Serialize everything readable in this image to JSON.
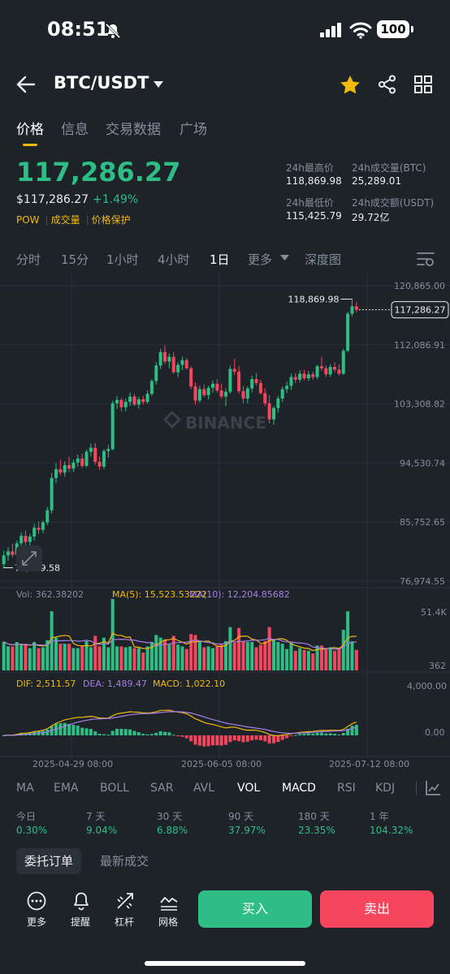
{
  "status": {
    "time": "08:51",
    "battery": "100"
  },
  "header": {
    "pair": "BTC/USDT"
  },
  "tabs": [
    "价格",
    "信息",
    "交易数据",
    "广场"
  ],
  "price": {
    "last": "117,286.27",
    "fiat": "$117,286.27",
    "change": "+1.49%",
    "tags": [
      "POW",
      "成交量",
      "价格保护"
    ]
  },
  "stats": {
    "high_label": "24h最高价",
    "high": "118,869.98",
    "vol_btc_label": "24h成交量(BTC)",
    "vol_btc": "25,289.01",
    "low_label": "24h最低价",
    "low": "115,425.79",
    "vol_usdt_label": "24h成交额(USDT)",
    "vol_usdt": "29.72亿"
  },
  "intervals": [
    "分时",
    "15分",
    "1小时",
    "4小时",
    "1日",
    "更多",
    "深度图"
  ],
  "chart_data": {
    "type": "candlestick",
    "price_axis": [
      "120,865.00",
      "112,086.91",
      "103,308.82",
      "94,530.74",
      "85,752.65",
      "76,974.55"
    ],
    "ylim": [
      76974.55,
      120865.0
    ],
    "high_marker": "118,869.98",
    "low_marker": "78,969.58",
    "last_price_tag": "117,286.27",
    "watermark": "BINANCE",
    "candles": [
      [
        79500,
        81500,
        78969.58,
        80800
      ],
      [
        80800,
        82000,
        80000,
        81400
      ],
      [
        81400,
        82500,
        80500,
        80900
      ],
      [
        80900,
        83000,
        80500,
        82600
      ],
      [
        82600,
        84200,
        82000,
        83700
      ],
      [
        83700,
        84500,
        82300,
        82800
      ],
      [
        82800,
        84000,
        82200,
        83600
      ],
      [
        83600,
        85500,
        83000,
        84900
      ],
      [
        84900,
        85800,
        84000,
        84600
      ],
      [
        84600,
        86000,
        84100,
        85700
      ],
      [
        85700,
        88000,
        85300,
        87500
      ],
      [
        87500,
        93000,
        87000,
        92300
      ],
      [
        92300,
        94500,
        91500,
        93600
      ],
      [
        93600,
        95000,
        92700,
        93100
      ],
      [
        93100,
        94800,
        92500,
        94200
      ],
      [
        94200,
        95500,
        93200,
        93700
      ],
      [
        93700,
        95000,
        93200,
        94600
      ],
      [
        94600,
        95800,
        94000,
        95200
      ],
      [
        95200,
        95900,
        93800,
        94100
      ],
      [
        94100,
        96500,
        93900,
        96200
      ],
      [
        96200,
        97400,
        95500,
        96800
      ],
      [
        96800,
        97500,
        94300,
        94700
      ],
      [
        94700,
        95500,
        93500,
        94000
      ],
      [
        94000,
        96600,
        93600,
        96300
      ],
      [
        96300,
        97200,
        95300,
        96600
      ],
      [
        96600,
        103800,
        96400,
        103400
      ],
      [
        103400,
        104500,
        102500,
        103900
      ],
      [
        103900,
        104200,
        102200,
        102800
      ],
      [
        102800,
        104100,
        102200,
        103600
      ],
      [
        103600,
        105000,
        103000,
        104400
      ],
      [
        104400,
        104800,
        103000,
        103200
      ],
      [
        103200,
        104400,
        102600,
        104000
      ],
      [
        104000,
        104500,
        103200,
        103600
      ],
      [
        103600,
        105300,
        103300,
        104800
      ],
      [
        104800,
        107000,
        104500,
        106700
      ],
      [
        106700,
        109500,
        106200,
        109000
      ],
      [
        109000,
        111500,
        108500,
        111000
      ],
      [
        111000,
        112000,
        109200,
        109600
      ],
      [
        109600,
        110800,
        108600,
        110300
      ],
      [
        110300,
        111000,
        107800,
        108000
      ],
      [
        108000,
        109500,
        107300,
        109100
      ],
      [
        109100,
        110300,
        108300,
        109800
      ],
      [
        109800,
        110100,
        108400,
        108600
      ],
      [
        108600,
        108900,
        105500,
        105900
      ],
      [
        105900,
        106500,
        103200,
        103800
      ],
      [
        103800,
        106000,
        103500,
        105500
      ],
      [
        105500,
        106200,
        104300,
        104600
      ],
      [
        104600,
        106000,
        104000,
        105700
      ],
      [
        105700,
        106800,
        105000,
        106300
      ],
      [
        106300,
        107000,
        105000,
        105300
      ],
      [
        105300,
        106300,
        104100,
        104400
      ],
      [
        104400,
        105600,
        103000,
        105100
      ],
      [
        105100,
        109000,
        104800,
        108500
      ],
      [
        108500,
        110000,
        107600,
        108100
      ],
      [
        108100,
        108900,
        104800,
        105200
      ],
      [
        105200,
        106000,
        103400,
        104100
      ],
      [
        104100,
        105900,
        103400,
        105600
      ],
      [
        105600,
        107500,
        105000,
        107000
      ],
      [
        107000,
        107900,
        106000,
        106400
      ],
      [
        106400,
        106900,
        104700,
        104900
      ],
      [
        104900,
        105600,
        103000,
        103400
      ],
      [
        103400,
        104600,
        100400,
        101000
      ],
      [
        101000,
        103000,
        100200,
        102700
      ],
      [
        102700,
        104500,
        102000,
        104100
      ],
      [
        104100,
        105900,
        103600,
        105500
      ],
      [
        105500,
        106600,
        104900,
        106000
      ],
      [
        106000,
        107800,
        105400,
        107300
      ],
      [
        107300,
        107900,
        106400,
        106900
      ],
      [
        106900,
        108300,
        106500,
        107800
      ],
      [
        107800,
        108400,
        106800,
        107100
      ],
      [
        107100,
        108200,
        106700,
        107700
      ],
      [
        107700,
        108100,
        106900,
        107300
      ],
      [
        107300,
        109100,
        107000,
        108900
      ],
      [
        108900,
        110300,
        108200,
        108600
      ],
      [
        108600,
        109000,
        107300,
        107700
      ],
      [
        107700,
        109200,
        107300,
        108800
      ],
      [
        108800,
        109500,
        108000,
        108400
      ],
      [
        108400,
        109200,
        107500,
        107800
      ],
      [
        107800,
        111500,
        107600,
        111200
      ],
      [
        111200,
        117000,
        111000,
        116700
      ],
      [
        116700,
        118869.98,
        116300,
        117800
      ],
      [
        117800,
        118500,
        116900,
        117286.27
      ]
    ]
  },
  "indicators": {
    "vol": "Vol: 362.38202",
    "ma5": "MA(5): 15,523.53222",
    "ma10": "MA(10): 12,204.85682",
    "vol_axis_top": "51.4K",
    "vol_axis_bottom": "362",
    "dif": "DIF: 2,511.57",
    "dea": "DEA: 1,489.47",
    "macd": "MACD: 1,022.10",
    "macd_axis_top": "4,000.00",
    "macd_axis_zero": "0.00"
  },
  "dates": [
    "2025-04-29 08:00",
    "2025-06-05 08:00",
    "2025-07-12 08:00"
  ],
  "indicator_tabs": [
    "MA",
    "EMA",
    "BOLL",
    "SAR",
    "AVL",
    "VOL",
    "MACD",
    "RSI",
    "KDJ"
  ],
  "performance": [
    {
      "label": "今日",
      "value": "0.30%"
    },
    {
      "label": "7 天",
      "value": "9.04%"
    },
    {
      "label": "30 天",
      "value": "6.88%"
    },
    {
      "label": "90 天",
      "value": "37.97%"
    },
    {
      "label": "180 天",
      "value": "23.35%"
    },
    {
      "label": "1 年",
      "value": "104.32%"
    }
  ],
  "order_tabs": [
    "委托订单",
    "最新成交"
  ],
  "bottom": {
    "more": "更多",
    "alert": "提醒",
    "leverage": "杠杆",
    "grid": "网格",
    "buy": "买入",
    "sell": "卖出"
  },
  "colors": {
    "up": "#2ebd85",
    "down": "#f6465d",
    "accent": "#f0b90b",
    "ma5": "#f0b90b",
    "ma10": "#a77fe6"
  }
}
